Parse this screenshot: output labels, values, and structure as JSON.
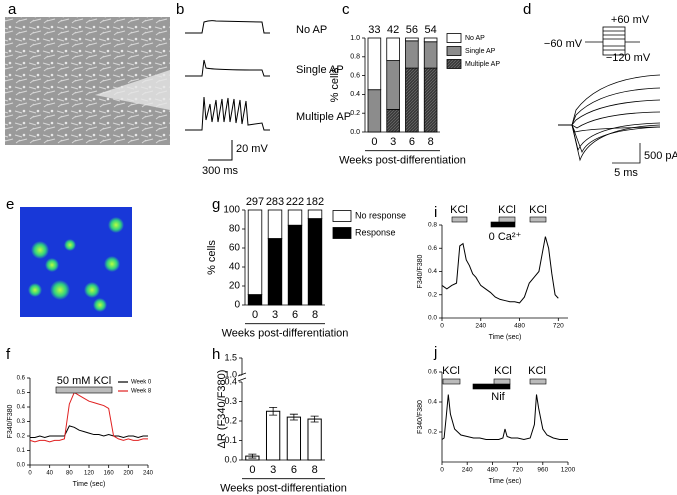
{
  "figure": {
    "labels": {
      "a": "a",
      "b": "b",
      "d": "d",
      "e": "e"
    },
    "b_traces": [
      "No AP",
      "Single AP",
      "Multiple AP"
    ],
    "b_scale_v": "20 mV",
    "b_scale_t": "300 ms",
    "d_levels": [
      "+60 mV",
      "−60 mV",
      "−120 mV"
    ],
    "d_scale_i": "500 pA",
    "d_scale_t": "5 ms"
  },
  "chart_data": [
    {
      "label": "c",
      "type": "stacked_bar",
      "categories": [
        "0",
        "3",
        "6",
        "8"
      ],
      "counts": [
        33,
        42,
        56,
        54
      ],
      "series": [
        {
          "name": "Multiple AP",
          "color": "#3a3a3a",
          "values": [
            0,
            0.24,
            0.68,
            0.68
          ]
        },
        {
          "name": "Single AP",
          "color": "#8c8c8c",
          "values": [
            0.45,
            0.52,
            0.29,
            0.28
          ]
        },
        {
          "name": "No AP",
          "color": "#ffffff",
          "values": [
            0.55,
            0.24,
            0.03,
            0.04
          ]
        }
      ],
      "ylabel": "% cells",
      "xlabel": "Weeks post-differentiation",
      "ylim": [
        0,
        1
      ],
      "yticks": [
        {
          "value": 0,
          "label": "0.0"
        },
        0.2,
        0.4,
        0.6,
        0.8,
        {
          "value": 1,
          "label": "1.0"
        }
      ]
    },
    {
      "label": "g",
      "type": "stacked_bar",
      "categories": [
        "0",
        "3",
        "6",
        "8"
      ],
      "counts": [
        297,
        283,
        222,
        182
      ],
      "series": [
        {
          "name": "Response",
          "color": "#000000",
          "values": [
            11,
            70,
            84,
            91
          ]
        },
        {
          "name": "No response",
          "color": "#ffffff",
          "values": [
            89,
            30,
            16,
            9
          ]
        }
      ],
      "ylabel": "% cells",
      "xlabel": "Weeks post-differentiation",
      "ylim": [
        0,
        100
      ],
      "yticks": [
        0,
        20,
        40,
        60,
        80,
        100
      ]
    },
    {
      "label": "i",
      "type": "line",
      "color": "#000000",
      "x": [
        0,
        30,
        60,
        90,
        110,
        130,
        150,
        170,
        190,
        210,
        240,
        270,
        300,
        330,
        360,
        390,
        420,
        450,
        480,
        510,
        540,
        570,
        600,
        620,
        640,
        660,
        680,
        700,
        720
      ],
      "values": [
        0.28,
        0.25,
        0.28,
        0.3,
        0.62,
        0.64,
        0.5,
        0.45,
        0.38,
        0.35,
        0.28,
        0.25,
        0.22,
        0.18,
        0.16,
        0.15,
        0.14,
        0.14,
        0.13,
        0.18,
        0.3,
        0.35,
        0.4,
        0.55,
        0.7,
        0.6,
        0.38,
        0.2,
        0.17
      ],
      "xlim": [
        0,
        780
      ],
      "xticks": [
        0,
        240,
        480,
        720
      ],
      "ylim": [
        0,
        0.8
      ],
      "yticks": [
        {
          "value": 0,
          "label": "0.0"
        },
        0.2,
        0.4,
        0.6,
        0.8
      ],
      "ylabel": "F340/F380",
      "xlabel": "Time (sec)",
      "annotations": [
        "KCl",
        "KCl",
        "KCl",
        "0 Ca²⁺"
      ]
    },
    {
      "label": "f",
      "type": "line",
      "x": [
        0,
        10,
        20,
        30,
        40,
        50,
        60,
        70,
        80,
        90,
        100,
        110,
        120,
        130,
        140,
        150,
        160,
        170,
        180,
        190,
        200,
        210,
        220,
        230,
        240
      ],
      "series": [
        {
          "name": "Week 0",
          "color": "#000000",
          "values": [
            0.19,
            0.19,
            0.2,
            0.19,
            0.2,
            0.2,
            0.2,
            0.2,
            0.27,
            0.26,
            0.24,
            0.23,
            0.22,
            0.21,
            0.21,
            0.2,
            0.21,
            0.2,
            0.2,
            0.19,
            0.2,
            0.2,
            0.19,
            0.2,
            0.2
          ]
        },
        {
          "name": "Week 8",
          "color": "#e02020",
          "values": [
            0.17,
            0.16,
            0.17,
            0.17,
            0.16,
            0.17,
            0.17,
            0.18,
            0.42,
            0.5,
            0.48,
            0.46,
            0.44,
            0.43,
            0.42,
            0.41,
            0.39,
            0.2,
            0.18,
            0.17,
            0.18,
            0.17,
            0.17,
            0.18,
            0.18
          ]
        }
      ],
      "xlim": [
        0,
        240
      ],
      "xticks": [
        0,
        40,
        80,
        120,
        160,
        200,
        240
      ],
      "ylim": [
        0,
        0.6
      ],
      "yticks": [
        {
          "value": 0,
          "label": "0.0"
        },
        0.1,
        0.2,
        0.3,
        0.4,
        0.5,
        0.6
      ],
      "ylabel": "F340/F380",
      "xlabel": "Time (sec)",
      "annotations": [
        "50 mM KCl"
      ]
    },
    {
      "label": "h",
      "type": "bar",
      "categories": [
        "0",
        "3",
        "6",
        "8"
      ],
      "values": [
        0.02,
        0.25,
        0.22,
        0.21
      ],
      "errors": [
        0.01,
        0.02,
        0.015,
        0.015
      ],
      "color": "#ffffff",
      "ylim": [
        0,
        0.4
      ],
      "yticks": [
        {
          "value": 0,
          "label": "0.0"
        },
        0.1,
        0.2,
        0.3,
        0.4
      ],
      "y2lim": [
        1,
        1.5
      ],
      "y2ticks": [
        {
          "value": 1,
          "label": "1.0"
        },
        1.5
      ],
      "ylabel": "ΔR (F340/F380)",
      "xlabel": "Weeks post-differentiation"
    },
    {
      "label": "j",
      "type": "line",
      "color": "#000000",
      "x": [
        0,
        20,
        40,
        60,
        80,
        120,
        180,
        240,
        300,
        360,
        420,
        480,
        540,
        580,
        600,
        620,
        660,
        720,
        780,
        840,
        880,
        900,
        920,
        960,
        1000,
        1060,
        1120,
        1200
      ],
      "values": [
        0.15,
        0.16,
        0.3,
        0.45,
        0.32,
        0.22,
        0.18,
        0.17,
        0.16,
        0.16,
        0.15,
        0.15,
        0.15,
        0.16,
        0.22,
        0.17,
        0.16,
        0.16,
        0.15,
        0.16,
        0.25,
        0.45,
        0.36,
        0.22,
        0.18,
        0.16,
        0.15,
        0.15
      ],
      "xlim": [
        0,
        1200
      ],
      "xticks": [
        0,
        240,
        480,
        720,
        960,
        1200
      ],
      "ylim": [
        0,
        0.6
      ],
      "yticks": [
        0.2,
        0.4,
        0.6
      ],
      "ylabel": "F340/F380",
      "xlabel": "Time (sec)",
      "annotations": [
        "KCl",
        "KCl",
        "KCl",
        "Nif"
      ]
    }
  ]
}
